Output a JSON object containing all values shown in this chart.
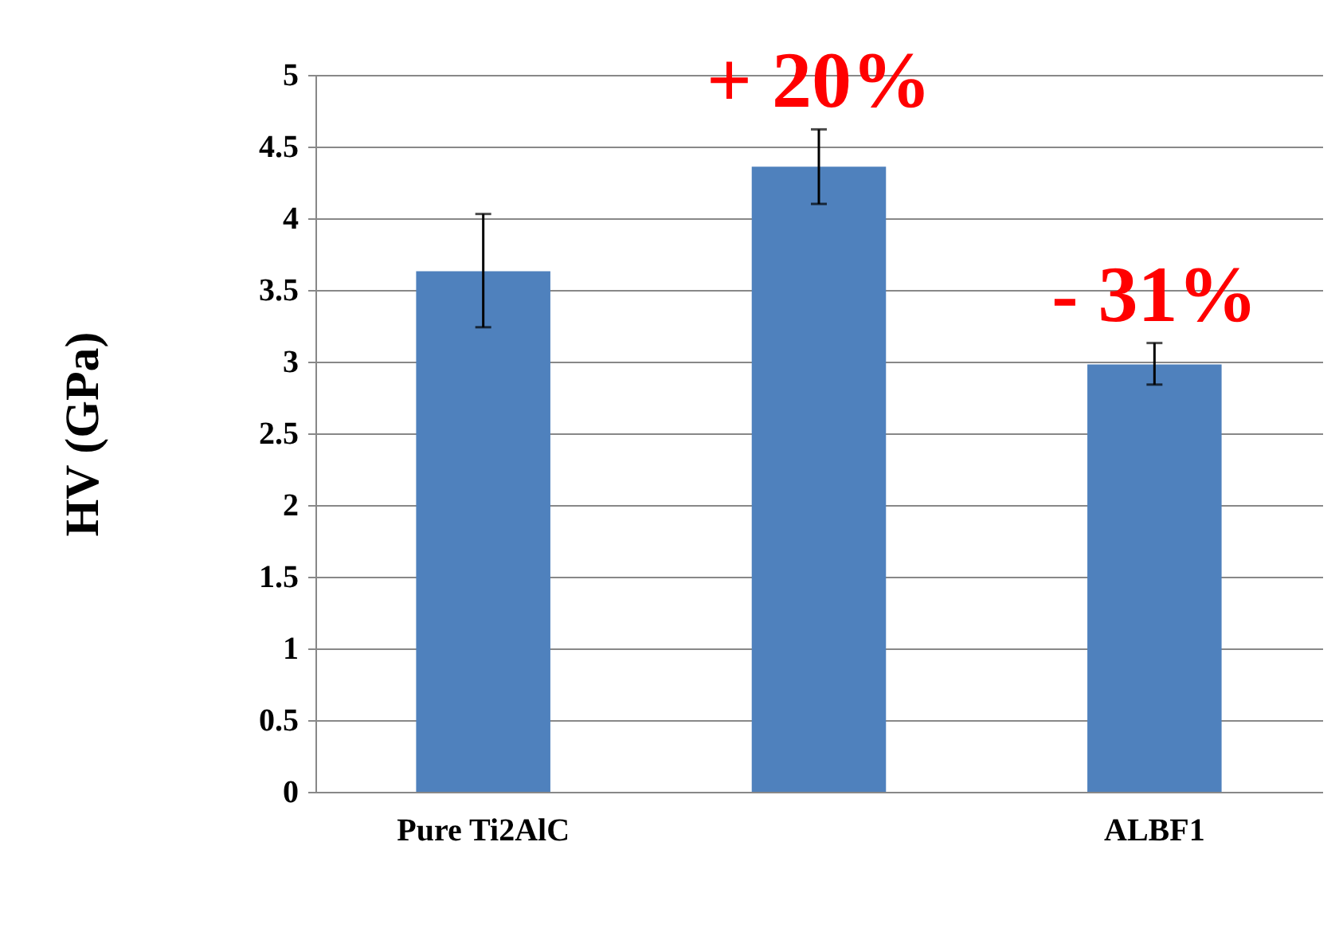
{
  "chart_data": {
    "type": "bar",
    "ylabel": "HV (GPa)",
    "categories": [
      "Pure Ti2AlC",
      null,
      "ALBF1"
    ],
    "values": [
      3.63,
      4.36,
      2.98
    ],
    "errors": [
      [
        3.24,
        4.03
      ],
      [
        4.1,
        4.62
      ],
      [
        2.84,
        3.13
      ]
    ],
    "color": "#4f81bd",
    "ylim": [
      0,
      5
    ],
    "yticks": [
      0,
      0.5,
      1,
      1.5,
      2,
      2.5,
      3,
      3.5,
      4,
      4.5,
      5
    ],
    "grid": "y",
    "annotations": [
      "+ 20%",
      "- 31%"
    ]
  }
}
